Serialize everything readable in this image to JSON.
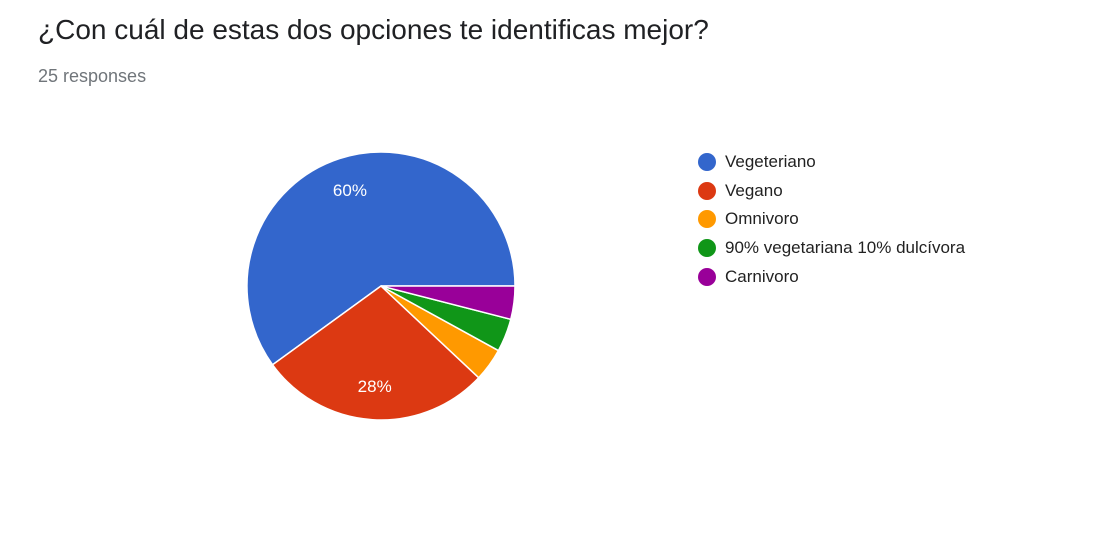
{
  "question": "¿Con cuál de estas dos opciones te identificas mejor?",
  "responses": "25 responses",
  "chart_data": {
    "type": "pie",
    "title": "¿Con cuál de estas dos opciones te identificas mejor?",
    "total_responses": 25,
    "categories": [
      "Vegeteriano",
      "Vegano",
      "Omnivoro",
      "90% vegetariana 10% dulcívora",
      "Carnivoro"
    ],
    "values": [
      60,
      28,
      4,
      4,
      4
    ],
    "counts": [
      15,
      7,
      1,
      1,
      1
    ],
    "data_labels": [
      "60%",
      "28%",
      "",
      "",
      ""
    ],
    "colors": [
      "#3366cc",
      "#dc3912",
      "#ff9900",
      "#109618",
      "#990099"
    ],
    "legend_position": "right"
  }
}
